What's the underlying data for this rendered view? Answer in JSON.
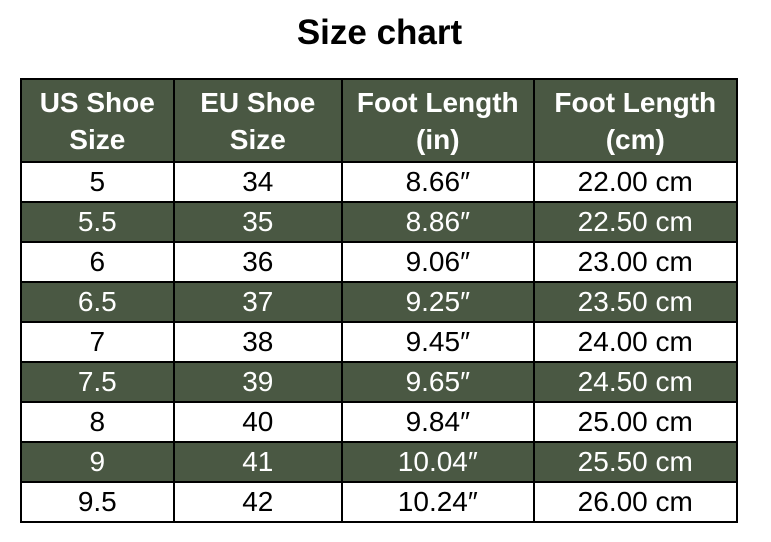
{
  "title": "Size chart",
  "headers": [
    [
      "US Shoe",
      "Size"
    ],
    [
      "EU Shoe",
      "Size"
    ],
    [
      "Foot Length",
      "(in)"
    ],
    [
      "Foot Length",
      "(cm)"
    ]
  ],
  "rows": [
    [
      "5",
      "34",
      "8.66″",
      "22.00 cm"
    ],
    [
      "5.5",
      "35",
      "8.86″",
      "22.50 cm"
    ],
    [
      "6",
      "36",
      "9.06″",
      "23.00 cm"
    ],
    [
      "6.5",
      "37",
      "9.25″",
      "23.50 cm"
    ],
    [
      "7",
      "38",
      "9.45″",
      "24.00 cm"
    ],
    [
      "7.5",
      "39",
      "9.65″",
      "24.50 cm"
    ],
    [
      "8",
      "40",
      "9.84″",
      "25.00 cm"
    ],
    [
      "9",
      "41",
      "10.04″",
      "25.50 cm"
    ],
    [
      "9.5",
      "42",
      "10.24″",
      "26.00 cm"
    ]
  ],
  "colors": {
    "header_bg": "#4a5843",
    "header_text": "#ffffff"
  }
}
